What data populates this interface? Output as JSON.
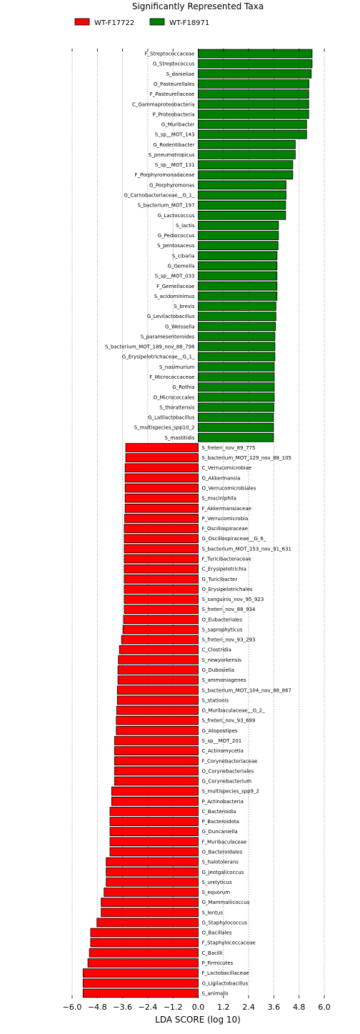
{
  "chart_data": {
    "type": "bar",
    "orientation": "horizontal",
    "title": "Significantly Represented Taxa",
    "xlabel": "LDA SCORE (log 10)",
    "ylabel": "",
    "xlim": [
      -6.0,
      6.0
    ],
    "xticks": [
      "−6.0",
      "−4.8",
      "−3.6",
      "−2.4",
      "−1.2",
      "0.0",
      "1.2",
      "2.4",
      "3.6",
      "4.8",
      "6.0"
    ],
    "grid": "vertical dotted",
    "legend_position": "top",
    "legend": [
      {
        "label": "WT-F17722",
        "color": "#ff0000"
      },
      {
        "label": "WT-F18971",
        "color": "#008000"
      }
    ],
    "categories": [
      "F_Streptococcaceae",
      "G_Streptococcus",
      "S_danieliae",
      "O_Pasteurellales",
      "F_Pasteurellaceae",
      "C_Gammaproteobacteria",
      "P_Proteobacteria",
      "G_Muribacter",
      "S_sp__MOT_143",
      "G_Rodentibacter",
      "S_pneumotropicus",
      "S_sp__MOT_131",
      "F_Porphyromonadaceae",
      "G_Porphyromonas",
      "G_Carnobacteriaceae__G_1_",
      "S_bacterium_MOT_197",
      "G_Lactococcus",
      "S_lactis",
      "G_Pediococcus",
      "S_pentosaceus",
      "S_cibaria",
      "G_Gemella",
      "S_sp__MOT_033",
      "F_Gemellaceae",
      "S_acidominimus",
      "S_brevis",
      "G_Levilactobacillus",
      "G_Weissella",
      "S_paramesenteroides",
      "S_bacterium_MOT_189_nov_88_798",
      "G_Erysipelotrichaceae__G_1_",
      "S_nasimurium",
      "F_Micrococcaceae",
      "G_Rothia",
      "O_Micrococcales",
      "S_thoraltensis",
      "G_Latilactobacillus",
      "S_multispecies_spp10_2",
      "S_mastitidis",
      "S_freteri_nov_89_775",
      "S_bacterium_MOT_129_nov_88_105",
      "C_Verrucomicrobiae",
      "G_Akkermansia",
      "O_Verrucomicrobiales",
      "S_muciniphila",
      "F_Akkermansiaceae",
      "P_Verrucomicrobia",
      "F_Oscillospiraceae",
      "G_Oscillospiraceae__G_6_",
      "S_bacterium_MOT_153_nov_91_631",
      "F_Turicibacteraceae",
      "C_Erysipelotrichia",
      "G_Turicibacter",
      "O_Erysipelotrichales",
      "S_sanguinis_nov_95_923",
      "S_freteri_nov_88_934",
      "O_Eubacteriales",
      "S_saprophyticus",
      "S_freteri_nov_93_293",
      "C_Clostridia",
      "S_newyorkensis",
      "G_Dubosiella",
      "S_ammoniagenes",
      "S_bacterium_MOT_104_nov_88_867",
      "S_stationis",
      "G_Muribaculaceae__G_2_",
      "S_freteri_nov_93_699",
      "G_Atopostipes",
      "S_sp__MOT_201",
      "C_Actinomycetia",
      "F_Corynebacteriaceae",
      "O_Corynebacteriales",
      "G_Corynebacterium",
      "S_multispecies_spp9_2",
      "P_Actinobacteria",
      "C_Bacteroidia",
      "P_Bacteroidota",
      "G_Duncaniella",
      "F_Muribaculaceae",
      "O_Bacteroidales",
      "S_halotolerans",
      "G_Jeotgalicoccus",
      "S_urelyticus",
      "S_equorum",
      "G_Mammaliicoccus",
      "S_lentus",
      "G_Staphylococcus",
      "O_Bacillales",
      "F_Staphylococcaceae",
      "C_Bacilli",
      "P_Firmicutes",
      "F_Lactobacillaceae",
      "G_Ligilactobacillus",
      "S_animalis"
    ],
    "values": [
      5.42,
      5.42,
      5.38,
      5.27,
      5.26,
      5.26,
      5.26,
      5.16,
      5.16,
      4.62,
      4.62,
      4.5,
      4.5,
      4.18,
      4.18,
      4.16,
      4.16,
      3.82,
      3.82,
      3.8,
      3.75,
      3.75,
      3.75,
      3.75,
      3.75,
      3.7,
      3.7,
      3.68,
      3.65,
      3.65,
      3.65,
      3.62,
      3.62,
      3.62,
      3.62,
      3.6,
      3.58,
      3.58,
      3.58,
      -3.45,
      -3.45,
      -3.48,
      -3.48,
      -3.48,
      -3.48,
      -3.48,
      -3.5,
      -3.52,
      -3.52,
      -3.52,
      -3.52,
      -3.52,
      -3.52,
      -3.52,
      -3.52,
      -3.52,
      -3.55,
      -3.58,
      -3.65,
      -3.75,
      -3.8,
      -3.82,
      -3.82,
      -3.85,
      -3.85,
      -3.88,
      -3.9,
      -3.9,
      -3.98,
      -3.98,
      -3.98,
      -3.98,
      -3.98,
      -4.12,
      -4.12,
      -4.2,
      -4.2,
      -4.2,
      -4.2,
      -4.2,
      -4.38,
      -4.38,
      -4.38,
      -4.48,
      -4.62,
      -4.62,
      -4.82,
      -5.12,
      -5.12,
      -5.18,
      -5.25,
      -5.48,
      -5.48,
      -5.48
    ]
  }
}
